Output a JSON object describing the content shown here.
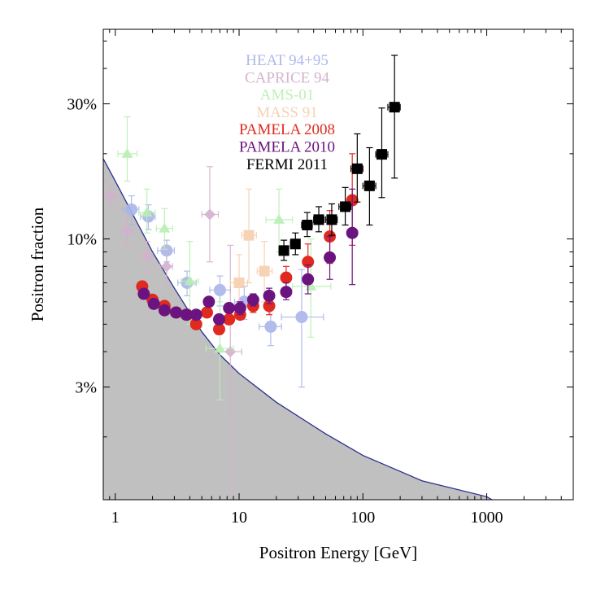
{
  "chart_data": {
    "type": "scatter",
    "xlabel": "Positron Energy [GeV]",
    "ylabel": "Positron fraction",
    "x_scale": "log",
    "y_scale": "log",
    "xlim": [
      0.8,
      5000
    ],
    "ylim": [
      0.012,
      0.55
    ],
    "x_ticks": [
      {
        "v": 1,
        "label": "1"
      },
      {
        "v": 10,
        "label": "10"
      },
      {
        "v": 100,
        "label": "100"
      },
      {
        "v": 1000,
        "label": "1000"
      }
    ],
    "y_ticks": [
      {
        "v": 0.03,
        "label": "3%"
      },
      {
        "v": 0.1,
        "label": "10%"
      },
      {
        "v": 0.3,
        "label": "30%"
      }
    ],
    "legend_position": "top-center",
    "shaded_region": {
      "name": "",
      "fill": "#c0c0c0",
      "line_color": "#2b2f8f",
      "x": [
        0.8,
        1,
        2,
        3,
        5,
        7,
        10,
        20,
        50,
        100,
        300,
        1000,
        1300
      ],
      "y": [
        0.192,
        0.16,
        0.09,
        0.067,
        0.047,
        0.039,
        0.0335,
        0.0265,
        0.0205,
        0.0172,
        0.014,
        0.0123,
        0.0115
      ]
    },
    "series": [
      {
        "name": "HEAT 94+95",
        "color": "#a9b5ea",
        "marker": "circle",
        "opacity": 0.9,
        "points": [
          {
            "x": 1.35,
            "y": 0.127,
            "xerr": [
              1.15,
              1.55
            ],
            "yerr": [
              0.112,
              0.142
            ]
          },
          {
            "x": 1.85,
            "y": 0.12,
            "xerr": [
              1.6,
              2.1
            ],
            "yerr": [
              0.108,
              0.132
            ]
          },
          {
            "x": 2.6,
            "y": 0.091,
            "xerr": [
              2.2,
              3.0
            ],
            "yerr": [
              0.083,
              0.099
            ]
          },
          {
            "x": 3.8,
            "y": 0.07,
            "xerr": [
              3.2,
              4.5
            ],
            "yerr": [
              0.063,
              0.077
            ]
          },
          {
            "x": 7.0,
            "y": 0.066,
            "xerr": [
              5.8,
              8.5
            ],
            "yerr": [
              0.058,
              0.074
            ]
          },
          {
            "x": 11.0,
            "y": 0.06,
            "xerr": [
              9.2,
              13.2
            ],
            "yerr": [
              0.052,
              0.068
            ]
          },
          {
            "x": 18.0,
            "y": 0.049,
            "xerr": [
              14.5,
              22.0
            ],
            "yerr": [
              0.042,
              0.057
            ]
          },
          {
            "x": 32.0,
            "y": 0.053,
            "xerr": [
              22.0,
              48.0
            ],
            "yerr": [
              0.03,
              0.078
            ]
          }
        ]
      },
      {
        "name": "CAPRICE 94",
        "color": "#d4b0cc",
        "marker": "diamond",
        "opacity": 0.9,
        "points": [
          {
            "x": 0.92,
            "y": 0.141,
            "xerr": [
              0.8,
              1.05
            ],
            "yerr": [
              0.128,
              0.155
            ]
          },
          {
            "x": 1.25,
            "y": 0.107,
            "xerr": [
              1.1,
              1.4
            ],
            "yerr": [
              0.095,
              0.12
            ]
          },
          {
            "x": 1.8,
            "y": 0.087,
            "xerr": [
              1.6,
              2.0
            ],
            "yerr": [
              0.076,
              0.098
            ]
          },
          {
            "x": 2.6,
            "y": 0.08,
            "xerr": [
              2.3,
              2.9
            ],
            "yerr": [
              0.068,
              0.092
            ]
          },
          {
            "x": 5.8,
            "y": 0.122,
            "xerr": [
              5.0,
              6.8
            ],
            "yerr": [
              0.083,
              0.18
            ]
          },
          {
            "x": 8.5,
            "y": 0.04,
            "xerr": [
              7.0,
              10.5
            ],
            "yerr": [
              0.011,
              0.095
            ]
          }
        ]
      },
      {
        "name": "AMS-01",
        "color": "#b9efb2",
        "marker": "triangle",
        "opacity": 0.9,
        "points": [
          {
            "x": 1.25,
            "y": 0.2,
            "xerr": [
              1.05,
              1.5
            ],
            "yerr": [
              0.16,
              0.27
            ]
          },
          {
            "x": 1.8,
            "y": 0.124,
            "xerr": [
              1.55,
              2.1
            ],
            "yerr": [
              0.105,
              0.15
            ]
          },
          {
            "x": 2.5,
            "y": 0.109,
            "xerr": [
              2.15,
              2.9
            ],
            "yerr": [
              0.092,
              0.128
            ]
          },
          {
            "x": 4.0,
            "y": 0.071,
            "xerr": [
              3.4,
              4.7
            ],
            "yerr": [
              0.05,
              0.098
            ]
          },
          {
            "x": 7.0,
            "y": 0.041,
            "xerr": [
              5.4,
              9.0
            ],
            "yerr": [
              0.027,
              0.06
            ]
          },
          {
            "x": 21.0,
            "y": 0.117,
            "xerr": [
              16.5,
              27.0
            ],
            "yerr": [
              0.09,
              0.15
            ]
          },
          {
            "x": 38.0,
            "y": 0.068,
            "xerr": [
              27.0,
              55.0
            ],
            "yerr": [
              0.045,
              0.1
            ]
          }
        ]
      },
      {
        "name": "MASS 91",
        "color": "#f7cfae",
        "marker": "square",
        "opacity": 0.9,
        "points": [
          {
            "x": 10.0,
            "y": 0.07,
            "xerr": [
              8.5,
              11.7
            ],
            "yerr": [
              0.055,
              0.088
            ]
          },
          {
            "x": 12.0,
            "y": 0.103,
            "xerr": [
              10.5,
              13.8
            ],
            "yerr": [
              0.07,
              0.15
            ]
          },
          {
            "x": 16.0,
            "y": 0.077,
            "xerr": [
              14.0,
              18.5
            ],
            "yerr": [
              0.06,
              0.098
            ]
          }
        ]
      },
      {
        "name": "PAMELA 2008",
        "color": "#e02a20",
        "marker": "circle",
        "opacity": 1,
        "points": [
          {
            "x": 1.65,
            "y": 0.068,
            "xerr": [
              1.6,
              1.7
            ],
            "yerr": [
              0.066,
              0.07
            ]
          },
          {
            "x": 2.0,
            "y": 0.061,
            "xerr": [
              1.9,
              2.1
            ],
            "yerr": [
              0.059,
              0.063
            ]
          },
          {
            "x": 2.5,
            "y": 0.058,
            "xerr": [
              2.4,
              2.6
            ],
            "yerr": [
              0.056,
              0.06
            ]
          },
          {
            "x": 3.1,
            "y": 0.055,
            "xerr": [
              3.0,
              3.2
            ],
            "yerr": [
              0.053,
              0.057
            ]
          },
          {
            "x": 3.8,
            "y": 0.054,
            "xerr": [
              3.7,
              3.9
            ],
            "yerr": [
              0.052,
              0.056
            ]
          },
          {
            "x": 4.5,
            "y": 0.05,
            "xerr": [
              4.4,
              4.6
            ],
            "yerr": [
              0.048,
              0.052
            ]
          },
          {
            "x": 5.5,
            "y": 0.055,
            "xerr": [
              5.4,
              5.6
            ],
            "yerr": [
              0.053,
              0.057
            ]
          },
          {
            "x": 6.9,
            "y": 0.048,
            "xerr": [
              6.8,
              7.0
            ],
            "yerr": [
              0.046,
              0.05
            ]
          },
          {
            "x": 8.3,
            "y": 0.052,
            "xerr": [
              8.2,
              8.4
            ],
            "yerr": [
              0.05,
              0.054
            ]
          },
          {
            "x": 10.2,
            "y": 0.054,
            "xerr": [
              10.1,
              10.3
            ],
            "yerr": [
              0.052,
              0.056
            ]
          },
          {
            "x": 13.0,
            "y": 0.058,
            "xerr": [
              12.9,
              13.1
            ],
            "yerr": [
              0.055,
              0.061
            ]
          },
          {
            "x": 17.5,
            "y": 0.058,
            "xerr": [
              17.4,
              17.6
            ],
            "yerr": [
              0.054,
              0.062
            ]
          },
          {
            "x": 24.0,
            "y": 0.073,
            "xerr": [
              23.9,
              24.1
            ],
            "yerr": [
              0.067,
              0.08
            ]
          },
          {
            "x": 36.0,
            "y": 0.083,
            "xerr": [
              35.8,
              36.2
            ],
            "yerr": [
              0.071,
              0.096
            ]
          },
          {
            "x": 54.0,
            "y": 0.102,
            "xerr": [
              53.5,
              54.5
            ],
            "yerr": [
              0.082,
              0.126
            ]
          },
          {
            "x": 82.0,
            "y": 0.137,
            "xerr": [
              81.0,
              83.0
            ],
            "yerr": [
              0.095,
              0.2
            ]
          }
        ]
      },
      {
        "name": "PAMELA 2010",
        "color": "#6b1480",
        "marker": "circle",
        "opacity": 1,
        "points": [
          {
            "x": 1.7,
            "y": 0.064,
            "xerr": [
              1.65,
              1.75
            ],
            "yerr": [
              0.062,
              0.066
            ]
          },
          {
            "x": 2.05,
            "y": 0.059,
            "xerr": [
              1.98,
              2.12
            ],
            "yerr": [
              0.057,
              0.061
            ]
          },
          {
            "x": 2.5,
            "y": 0.056,
            "xerr": [
              2.42,
              2.58
            ],
            "yerr": [
              0.054,
              0.058
            ]
          },
          {
            "x": 3.1,
            "y": 0.055,
            "xerr": [
              3.0,
              3.2
            ],
            "yerr": [
              0.053,
              0.057
            ]
          },
          {
            "x": 3.75,
            "y": 0.054,
            "xerr": [
              3.65,
              3.85
            ],
            "yerr": [
              0.052,
              0.056
            ]
          },
          {
            "x": 4.5,
            "y": 0.054,
            "xerr": [
              4.4,
              4.6
            ],
            "yerr": [
              0.052,
              0.056
            ]
          },
          {
            "x": 5.7,
            "y": 0.06,
            "xerr": [
              5.6,
              5.8
            ],
            "yerr": [
              0.058,
              0.062
            ]
          },
          {
            "x": 6.9,
            "y": 0.052,
            "xerr": [
              6.8,
              7.0
            ],
            "yerr": [
              0.05,
              0.054
            ]
          },
          {
            "x": 8.3,
            "y": 0.057,
            "xerr": [
              8.2,
              8.4
            ],
            "yerr": [
              0.055,
              0.059
            ]
          },
          {
            "x": 10.2,
            "y": 0.057,
            "xerr": [
              10.1,
              10.3
            ],
            "yerr": [
              0.054,
              0.06
            ]
          },
          {
            "x": 13.0,
            "y": 0.061,
            "xerr": [
              12.9,
              13.1
            ],
            "yerr": [
              0.058,
              0.064
            ]
          },
          {
            "x": 17.5,
            "y": 0.063,
            "xerr": [
              17.4,
              17.6
            ],
            "yerr": [
              0.059,
              0.067
            ]
          },
          {
            "x": 24.0,
            "y": 0.065,
            "xerr": [
              23.9,
              24.1
            ],
            "yerr": [
              0.061,
              0.07
            ]
          },
          {
            "x": 36.0,
            "y": 0.072,
            "xerr": [
              35.8,
              36.2
            ],
            "yerr": [
              0.064,
              0.081
            ]
          },
          {
            "x": 54.0,
            "y": 0.086,
            "xerr": [
              53.5,
              54.5
            ],
            "yerr": [
              0.072,
              0.102
            ]
          },
          {
            "x": 82.0,
            "y": 0.105,
            "xerr": [
              81.0,
              83.0
            ],
            "yerr": [
              0.069,
              0.15
            ]
          }
        ]
      },
      {
        "name": "FERMI 2011",
        "color": "#000000",
        "marker": "square",
        "opacity": 1,
        "points": [
          {
            "x": 23.0,
            "y": 0.091,
            "xerr": [
              21.0,
              25.0
            ],
            "yerr": [
              0.084,
              0.099
            ]
          },
          {
            "x": 28.5,
            "y": 0.096,
            "xerr": [
              26.0,
              31.0
            ],
            "yerr": [
              0.088,
              0.105
            ]
          },
          {
            "x": 35.5,
            "y": 0.112,
            "xerr": [
              32.0,
              39.0
            ],
            "yerr": [
              0.102,
              0.124
            ]
          },
          {
            "x": 44.0,
            "y": 0.117,
            "xerr": [
              40.0,
              48.5
            ],
            "yerr": [
              0.106,
              0.13
            ]
          },
          {
            "x": 56.0,
            "y": 0.117,
            "xerr": [
              50.0,
              62.0
            ],
            "yerr": [
              0.103,
              0.133
            ]
          },
          {
            "x": 72.0,
            "y": 0.13,
            "xerr": [
              64.0,
              80.0
            ],
            "yerr": [
              0.112,
              0.152
            ]
          },
          {
            "x": 90.0,
            "y": 0.177,
            "xerr": [
              80.0,
              100.0
            ],
            "yerr": [
              0.135,
              0.235
            ]
          },
          {
            "x": 113.0,
            "y": 0.154,
            "xerr": [
              100.0,
              127.0
            ],
            "yerr": [
              0.112,
              0.21
            ]
          },
          {
            "x": 142.0,
            "y": 0.199,
            "xerr": [
              127.0,
              159.0
            ],
            "yerr": [
              0.14,
              0.29
            ]
          },
          {
            "x": 180.0,
            "y": 0.292,
            "xerr": [
              159.0,
              200.0
            ],
            "yerr": [
              0.164,
              0.445
            ]
          }
        ]
      }
    ]
  }
}
